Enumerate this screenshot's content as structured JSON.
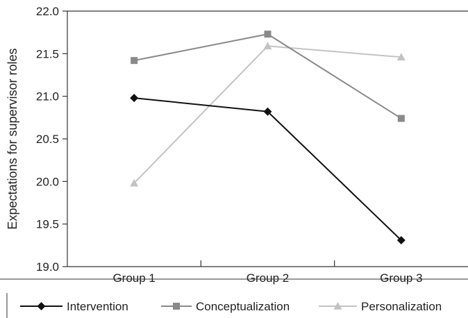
{
  "chart_data": {
    "type": "line",
    "ylabel": "Expectations for supervisor roles",
    "xlabel": "",
    "categories": [
      "Group 1",
      "Group 2",
      "Group 3"
    ],
    "ylim": [
      19.0,
      22.0
    ],
    "yticks": [
      "19.0",
      "19.5",
      "20.0",
      "20.5",
      "21.0",
      "21.5",
      "22.0"
    ],
    "grid": false,
    "legend_position": "bottom",
    "series": [
      {
        "name": "Intervention",
        "values": [
          20.98,
          20.82,
          19.31
        ],
        "color": "#111111",
        "marker": "diamond"
      },
      {
        "name": "Conceptualization",
        "values": [
          21.42,
          21.73,
          20.74
        ],
        "color": "#8a8a8a",
        "marker": "square"
      },
      {
        "name": "Personalization",
        "values": [
          19.98,
          21.59,
          21.46
        ],
        "color": "#c3c3c3",
        "marker": "triangle"
      }
    ]
  }
}
